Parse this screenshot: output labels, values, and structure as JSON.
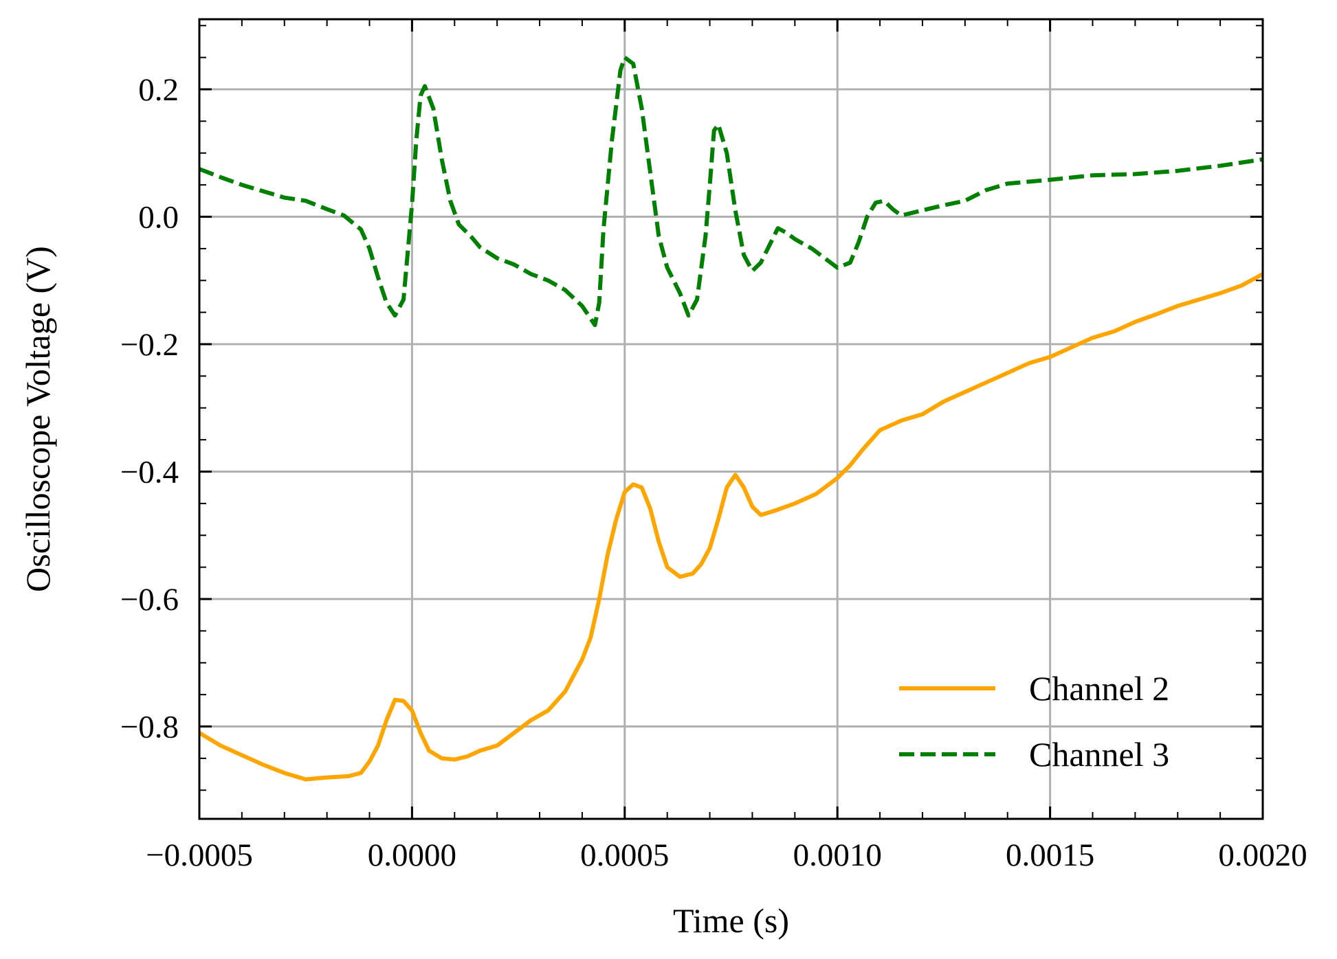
{
  "chart_data": {
    "type": "line",
    "title": "",
    "xlabel": "Time (s)",
    "ylabel": "Oscilloscope Voltage (V)",
    "xlim": [
      -0.0005,
      0.002
    ],
    "ylim": [
      -0.945,
      0.31
    ],
    "x_ticks": [
      -0.0005,
      0.0,
      0.0005,
      0.001,
      0.0015,
      0.002
    ],
    "x_tick_labels": [
      "−0.0005",
      "0.0000",
      "0.0005",
      "0.0010",
      "0.0015",
      "0.0020"
    ],
    "y_ticks": [
      -0.8,
      -0.6,
      -0.4,
      -0.2,
      0.0,
      0.2
    ],
    "y_tick_labels": [
      "−0.8",
      "−0.6",
      "−0.4",
      "−0.2",
      "0.0",
      "0.2"
    ],
    "grid": true,
    "legend": {
      "placement": "lower-right"
    },
    "series": [
      {
        "name": "Channel 2",
        "color": "#ffa500",
        "style": "solid",
        "points": [
          [
            -0.0005,
            -0.81
          ],
          [
            -0.00045,
            -0.83
          ],
          [
            -0.0004,
            -0.845
          ],
          [
            -0.00035,
            -0.86
          ],
          [
            -0.0003,
            -0.873
          ],
          [
            -0.00025,
            -0.883
          ],
          [
            -0.0002,
            -0.88
          ],
          [
            -0.00015,
            -0.878
          ],
          [
            -0.00012,
            -0.873
          ],
          [
            -0.0001,
            -0.855
          ],
          [
            -8e-05,
            -0.83
          ],
          [
            -6e-05,
            -0.79
          ],
          [
            -4e-05,
            -0.758
          ],
          [
            -2e-05,
            -0.76
          ],
          [
            0.0,
            -0.775
          ],
          [
            2e-05,
            -0.81
          ],
          [
            4e-05,
            -0.838
          ],
          [
            7e-05,
            -0.85
          ],
          [
            0.0001,
            -0.852
          ],
          [
            0.00013,
            -0.847
          ],
          [
            0.00016,
            -0.838
          ],
          [
            0.0002,
            -0.83
          ],
          [
            0.00024,
            -0.81
          ],
          [
            0.00028,
            -0.79
          ],
          [
            0.00032,
            -0.775
          ],
          [
            0.00036,
            -0.745
          ],
          [
            0.00038,
            -0.72
          ],
          [
            0.0004,
            -0.695
          ],
          [
            0.00042,
            -0.66
          ],
          [
            0.00044,
            -0.6
          ],
          [
            0.00046,
            -0.53
          ],
          [
            0.00048,
            -0.475
          ],
          [
            0.0005,
            -0.432
          ],
          [
            0.00052,
            -0.42
          ],
          [
            0.00054,
            -0.425
          ],
          [
            0.00056,
            -0.458
          ],
          [
            0.00058,
            -0.51
          ],
          [
            0.0006,
            -0.55
          ],
          [
            0.00063,
            -0.565
          ],
          [
            0.00066,
            -0.56
          ],
          [
            0.00068,
            -0.545
          ],
          [
            0.0007,
            -0.52
          ],
          [
            0.00072,
            -0.475
          ],
          [
            0.00074,
            -0.425
          ],
          [
            0.00076,
            -0.405
          ],
          [
            0.00078,
            -0.425
          ],
          [
            0.0008,
            -0.455
          ],
          [
            0.00082,
            -0.468
          ],
          [
            0.00085,
            -0.462
          ],
          [
            0.0009,
            -0.45
          ],
          [
            0.00095,
            -0.435
          ],
          [
            0.001,
            -0.41
          ],
          [
            0.00103,
            -0.39
          ],
          [
            0.00106,
            -0.365
          ],
          [
            0.0011,
            -0.335
          ],
          [
            0.00115,
            -0.32
          ],
          [
            0.0012,
            -0.31
          ],
          [
            0.00125,
            -0.29
          ],
          [
            0.0013,
            -0.275
          ],
          [
            0.00135,
            -0.26
          ],
          [
            0.0014,
            -0.245
          ],
          [
            0.00145,
            -0.23
          ],
          [
            0.0015,
            -0.22
          ],
          [
            0.00155,
            -0.205
          ],
          [
            0.0016,
            -0.19
          ],
          [
            0.00165,
            -0.18
          ],
          [
            0.0017,
            -0.165
          ],
          [
            0.00175,
            -0.153
          ],
          [
            0.0018,
            -0.14
          ],
          [
            0.00185,
            -0.13
          ],
          [
            0.0019,
            -0.12
          ],
          [
            0.00195,
            -0.108
          ],
          [
            0.002,
            -0.09
          ]
        ]
      },
      {
        "name": "Channel 3",
        "color": "#008000",
        "style": "dashed",
        "points": [
          [
            -0.0005,
            0.075
          ],
          [
            -0.00045,
            0.062
          ],
          [
            -0.0004,
            0.05
          ],
          [
            -0.00035,
            0.04
          ],
          [
            -0.0003,
            0.03
          ],
          [
            -0.00025,
            0.025
          ],
          [
            -0.0002,
            0.012
          ],
          [
            -0.00016,
            0.002
          ],
          [
            -0.00012,
            -0.02
          ],
          [
            -0.0001,
            -0.05
          ],
          [
            -8e-05,
            -0.095
          ],
          [
            -6e-05,
            -0.135
          ],
          [
            -4e-05,
            -0.155
          ],
          [
            -2e-05,
            -0.13
          ],
          [
            0.0,
            0.02
          ],
          [
            1e-05,
            0.12
          ],
          [
            2e-05,
            0.19
          ],
          [
            3e-05,
            0.205
          ],
          [
            5e-05,
            0.17
          ],
          [
            7e-05,
            0.09
          ],
          [
            9e-05,
            0.025
          ],
          [
            0.00011,
            -0.012
          ],
          [
            0.00014,
            -0.032
          ],
          [
            0.00016,
            -0.048
          ],
          [
            0.0002,
            -0.065
          ],
          [
            0.00024,
            -0.075
          ],
          [
            0.00028,
            -0.09
          ],
          [
            0.00032,
            -0.1
          ],
          [
            0.00036,
            -0.115
          ],
          [
            0.0004,
            -0.14
          ],
          [
            0.00042,
            -0.16
          ],
          [
            0.00043,
            -0.17
          ],
          [
            0.00044,
            -0.135
          ],
          [
            0.00045,
            -0.02
          ],
          [
            0.00047,
            0.12
          ],
          [
            0.00049,
            0.23
          ],
          [
            0.0005,
            0.25
          ],
          [
            0.00052,
            0.24
          ],
          [
            0.00054,
            0.17
          ],
          [
            0.00056,
            0.07
          ],
          [
            0.00058,
            -0.03
          ],
          [
            0.0006,
            -0.08
          ],
          [
            0.00063,
            -0.12
          ],
          [
            0.00065,
            -0.155
          ],
          [
            0.00067,
            -0.13
          ],
          [
            0.00069,
            -0.03
          ],
          [
            0.0007,
            0.05
          ],
          [
            0.00071,
            0.135
          ],
          [
            0.00072,
            0.145
          ],
          [
            0.00074,
            0.1
          ],
          [
            0.00076,
            0.01
          ],
          [
            0.00078,
            -0.06
          ],
          [
            0.0008,
            -0.085
          ],
          [
            0.00082,
            -0.072
          ],
          [
            0.00084,
            -0.045
          ],
          [
            0.00086,
            -0.018
          ],
          [
            0.00088,
            -0.025
          ],
          [
            0.0009,
            -0.035
          ],
          [
            0.00094,
            -0.05
          ],
          [
            0.00098,
            -0.07
          ],
          [
            0.001,
            -0.08
          ],
          [
            0.00103,
            -0.072
          ],
          [
            0.00105,
            -0.04
          ],
          [
            0.00107,
            0.0
          ],
          [
            0.00109,
            0.022
          ],
          [
            0.00111,
            0.025
          ],
          [
            0.00113,
            0.012
          ],
          [
            0.00115,
            0.002
          ],
          [
            0.0012,
            0.01
          ],
          [
            0.00125,
            0.018
          ],
          [
            0.0013,
            0.025
          ],
          [
            0.00135,
            0.042
          ],
          [
            0.0014,
            0.052
          ],
          [
            0.0015,
            0.058
          ],
          [
            0.0016,
            0.065
          ],
          [
            0.0017,
            0.067
          ],
          [
            0.0018,
            0.072
          ],
          [
            0.0019,
            0.08
          ],
          [
            0.002,
            0.09
          ]
        ]
      }
    ]
  }
}
